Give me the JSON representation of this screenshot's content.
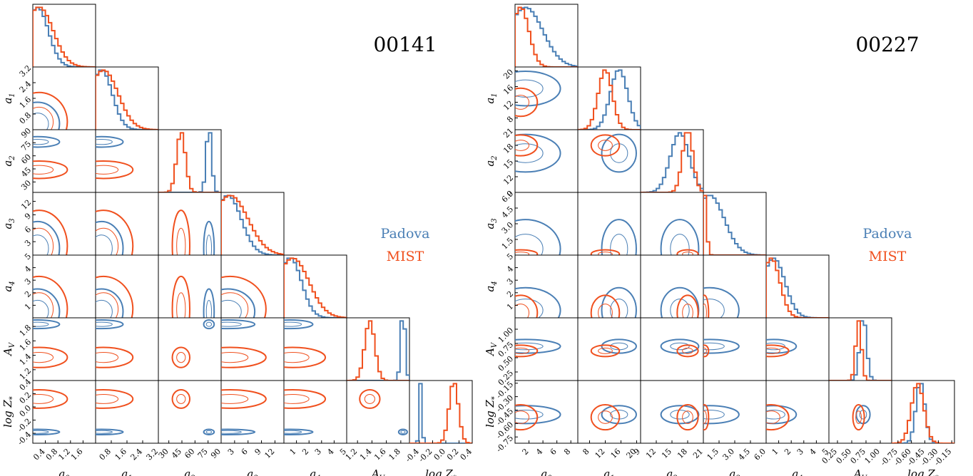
{
  "colors": {
    "padova": "#4a7fb5",
    "mist": "#f0501e"
  },
  "chart_data": [
    {
      "type": "corner",
      "object_id": "00141",
      "legend": [
        "Padova",
        "MIST"
      ],
      "params": [
        {
          "label": "a_0",
          "lim": [
            0,
            2.0
          ],
          "ticks": [
            "0.4",
            "0.8",
            "1.2",
            "1.6"
          ],
          "tickv": [
            0.4,
            0.8,
            1.2,
            1.6
          ],
          "modes": {
            "padova": [
              0.15,
              0.35
            ],
            "mist": [
              0.2,
              0.45
            ]
          }
        },
        {
          "label": "a_1",
          "lim": [
            0,
            3.2
          ],
          "ticks": [
            "0.8",
            "1.6",
            "2.4",
            "3.2"
          ],
          "tickv": [
            0.8,
            1.6,
            2.4,
            3.2
          ],
          "modes": {
            "padova": [
              0.3,
              0.55
            ],
            "mist": [
              0.4,
              0.75
            ]
          }
        },
        {
          "label": "a_2",
          "lim": [
            18,
            90
          ],
          "ticks": [
            "30",
            "45",
            "60",
            "75",
            "90"
          ],
          "tickv": [
            30,
            45,
            60,
            75,
            90
          ],
          "modes": {
            "padova": [
              76,
              3
            ],
            "mist": [
              44,
              5
            ]
          }
        },
        {
          "label": "a_3",
          "lim": [
            0,
            14
          ],
          "ticks": [
            "3",
            "6",
            "9",
            "12"
          ],
          "tickv": [
            3,
            6,
            9,
            12
          ],
          "modes": {
            "padova": [
              1.5,
              3.0
            ],
            "mist": [
              2.0,
              4.0
            ]
          }
        },
        {
          "label": "a_4",
          "lim": [
            0,
            5
          ],
          "ticks": [
            "1",
            "2",
            "3",
            "4",
            "5"
          ],
          "tickv": [
            1,
            2,
            3,
            4,
            5
          ],
          "modes": {
            "padova": [
              0.5,
              0.9
            ],
            "mist": [
              0.7,
              1.3
            ]
          }
        },
        {
          "label": "A_V",
          "lim": [
            1.05,
            1.92
          ],
          "ticks": [
            "1.2",
            "1.4",
            "1.6",
            "1.8"
          ],
          "tickv": [
            1.2,
            1.4,
            1.6,
            1.8
          ],
          "modes": {
            "padova": [
              1.83,
              0.03
            ],
            "mist": [
              1.37,
              0.07
            ]
          }
        },
        {
          "label": "log Z_*",
          "lim": [
            -0.55,
            0.4
          ],
          "ticks": [
            "-0.4",
            "-0.2",
            "0.0",
            "0.2",
            "0.4"
          ],
          "tickv": [
            -0.4,
            -0.2,
            0.0,
            0.2,
            0.4
          ],
          "modes": {
            "padova": [
              -0.38,
              0.02
            ],
            "mist": [
              0.12,
              0.07
            ]
          }
        }
      ]
    },
    {
      "type": "corner",
      "object_id": "00227",
      "legend": [
        "Padova",
        "MIST"
      ],
      "params": [
        {
          "label": "a_0",
          "lim": [
            0,
            9
          ],
          "ticks": [
            "2",
            "4",
            "6",
            "8"
          ],
          "tickv": [
            2,
            4,
            6,
            8
          ],
          "modes": {
            "padova": [
              1.5,
              2.5
            ],
            "mist": [
              0.8,
              1.2
            ]
          }
        },
        {
          "label": "a_1",
          "lim": [
            5,
            21
          ],
          "ticks": [
            "8",
            "12",
            "16",
            "20"
          ],
          "tickv": [
            8,
            12,
            16,
            20
          ],
          "modes": {
            "padova": [
              15.5,
              2.2
            ],
            "mist": [
              12,
              1.8
            ]
          }
        },
        {
          "label": "a_2",
          "lim": [
            9,
            21
          ],
          "ticks": [
            "9",
            "12",
            "15",
            "18",
            "21"
          ],
          "tickv": [
            9,
            12,
            15,
            18,
            21
          ],
          "modes": {
            "padova": [
              16.5,
              1.8
            ],
            "mist": [
              18,
              1.0
            ]
          }
        },
        {
          "label": "a_3",
          "lim": [
            0,
            6
          ],
          "ticks": [
            "1.5",
            "3.0",
            "4.5",
            "6.0"
          ],
          "tickv": [
            1.5,
            3.0,
            4.5,
            6.0
          ],
          "modes": {
            "padova": [
              0.6,
              1.4
            ],
            "mist": [
              0.1,
              0.2
            ]
          }
        },
        {
          "label": "a_4",
          "lim": [
            0,
            5
          ],
          "ticks": [
            "1",
            "2",
            "3",
            "4",
            "5"
          ],
          "tickv": [
            1,
            2,
            3,
            4,
            5
          ],
          "modes": {
            "padova": [
              0.6,
              0.9
            ],
            "mist": [
              0.4,
              0.7
            ]
          }
        },
        {
          "label": "A_V",
          "lim": [
            0.1,
            1.2
          ],
          "ticks": [
            "0.25",
            "0.50",
            "0.75",
            "1.00"
          ],
          "tickv": [
            0.25,
            0.5,
            0.75,
            1.0
          ],
          "modes": {
            "padova": [
              0.7,
              0.06
            ],
            "mist": [
              0.62,
              0.05
            ]
          }
        },
        {
          "label": "log Z_*",
          "lim": [
            -0.82,
            -0.12
          ],
          "ticks": [
            "-0.75",
            "-0.60",
            "-0.45",
            "-0.30",
            "-0.15"
          ],
          "tickv": [
            -0.75,
            -0.6,
            -0.45,
            -0.3,
            -0.15
          ],
          "modes": {
            "padova": [
              -0.5,
              0.05
            ],
            "mist": [
              -0.53,
              0.07
            ]
          }
        }
      ]
    }
  ]
}
